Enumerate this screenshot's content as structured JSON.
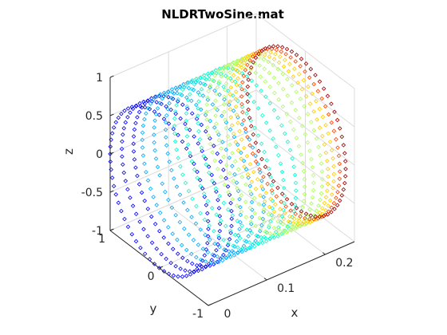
{
  "chart_data": {
    "type": "scatter",
    "title": "NLDRTwoSine.mat",
    "xlabel": "x",
    "ylabel": "y",
    "zlabel": "z",
    "xlim": [
      0,
      0.25
    ],
    "ylim": [
      -1,
      1
    ],
    "zlim": [
      -1,
      1
    ],
    "x_ticks": [
      "0",
      "0.1",
      "0.2"
    ],
    "y_ticks": [
      "-1",
      "0",
      "1"
    ],
    "z_ticks": [
      "-1",
      "-0.5",
      "0",
      "0.5",
      "1"
    ],
    "grid": true,
    "marker": "diamond",
    "colormap": "jet",
    "series": [
      {
        "color": "#0000ff",
        "x": [
          0.0,
          0.02,
          0.04
        ]
      },
      {
        "color": "#00aaff",
        "x": [
          0.055,
          0.075,
          0.095
        ]
      },
      {
        "color": "#00ffcc",
        "x": [
          0.11,
          0.13,
          0.15
        ]
      },
      {
        "color": "#aaff55",
        "x": [
          0.165,
          0.18,
          0.195
        ]
      },
      {
        "color": "#ffcc00",
        "x": [
          0.205,
          0.215
        ]
      },
      {
        "color": "#ff4400",
        "x": [
          0.225
        ]
      },
      {
        "color": "#990000",
        "x": [
          0.235
        ]
      }
    ],
    "shape": "stack of unit circles y = cos(t), z = sin(t) positioned along x"
  }
}
